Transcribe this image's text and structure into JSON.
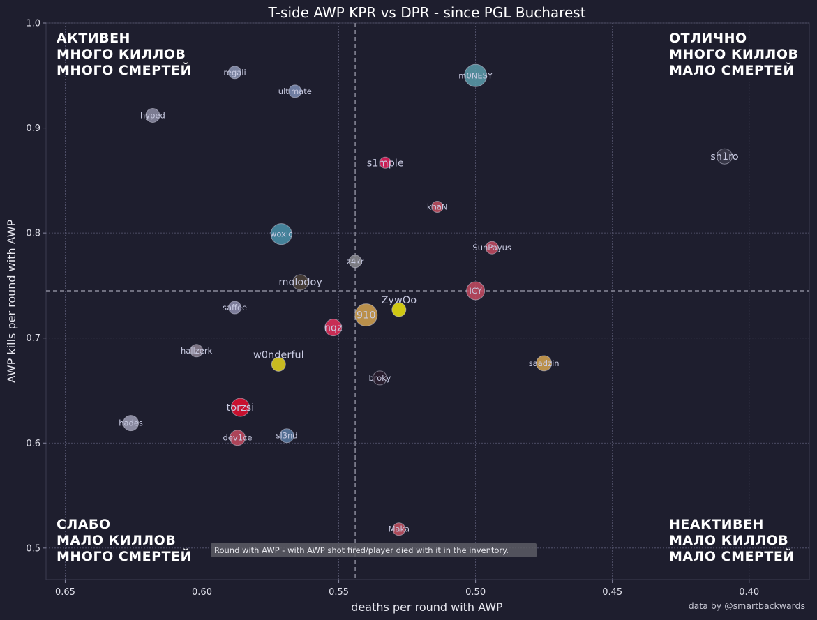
{
  "chart_data": {
    "type": "scatter",
    "title": "T-side AWP KPR vs DPR - since PGL Bucharest",
    "xlabel": "deaths per round with AWP",
    "ylabel": "AWP kills per round with AWP",
    "x_inverted": true,
    "xlim": [
      0.657,
      0.378
    ],
    "ylim": [
      0.47,
      1.0
    ],
    "x_ticks": [
      "0.65",
      "0.60",
      "0.55",
      "0.50",
      "0.45",
      "0.40"
    ],
    "x_tick_values": [
      0.65,
      0.6,
      0.55,
      0.5,
      0.45,
      0.4
    ],
    "y_ticks": [
      "0.5",
      "0.6",
      "0.7",
      "0.8",
      "0.9",
      "1.0"
    ],
    "y_tick_values": [
      0.5,
      0.6,
      0.7,
      0.8,
      0.9,
      1.0
    ],
    "grid": true,
    "reference_lines": {
      "x": 0.544,
      "y": 0.745
    },
    "quadrants": {
      "top_left": [
        "АКТИВЕН",
        "МНОГО КИЛЛОВ",
        "МНОГО СМЕРТЕЙ"
      ],
      "top_right": [
        "ОТЛИЧНО",
        "МНОГО КИЛЛОВ",
        "МАЛО СМЕРТЕЙ"
      ],
      "bottom_left": [
        "СЛАБО",
        "МАЛО КИЛЛОВ",
        "МНОГО СМЕРТЕЙ"
      ],
      "bottom_right": [
        "НЕАКТИВЕН",
        "МАЛО КИЛЛОВ",
        "МАЛО СМЕРТЕЙ"
      ]
    },
    "note": "Round with AWP - with AWP shot fired/player died with it in the inventory.",
    "credit": "data by @smartbackwards",
    "points": [
      {
        "name": "regali",
        "x": 0.588,
        "y": 0.953,
        "size": 9,
        "color": "#8a93b0",
        "label_size": "small"
      },
      {
        "name": "ultimate",
        "x": 0.566,
        "y": 0.935,
        "size": 9,
        "color": "#7a8ab0",
        "label_size": "small"
      },
      {
        "name": "hyped",
        "x": 0.618,
        "y": 0.912,
        "size": 10,
        "color": "#8a8aa0",
        "label_size": "small"
      },
      {
        "name": "m0NESY",
        "x": 0.5,
        "y": 0.95,
        "size": 16,
        "color": "#5a9aa8",
        "label_size": "small"
      },
      {
        "name": "sh1ro",
        "x": 0.409,
        "y": 0.873,
        "size": 11,
        "color": "#3a3a4a",
        "label_size": "large"
      },
      {
        "name": "s1mple",
        "x": 0.533,
        "y": 0.867,
        "size": 8,
        "color": "#e0205a",
        "label_size": "large"
      },
      {
        "name": "khaN",
        "x": 0.514,
        "y": 0.825,
        "size": 8,
        "color": "#c05060",
        "label_size": "small"
      },
      {
        "name": "woxic",
        "x": 0.571,
        "y": 0.799,
        "size": 15,
        "color": "#4a90a8",
        "label_size": "small"
      },
      {
        "name": "SunPayus",
        "x": 0.494,
        "y": 0.786,
        "size": 9,
        "color": "#c04a60",
        "label_size": "small"
      },
      {
        "name": "z4kr",
        "x": 0.544,
        "y": 0.773,
        "size": 9,
        "color": "#8a8a90",
        "label_size": "small"
      },
      {
        "name": "molodoy",
        "x": 0.564,
        "y": 0.753,
        "size": 11,
        "color": "#4a4038",
        "label_size": "large"
      },
      {
        "name": "ICY",
        "x": 0.5,
        "y": 0.745,
        "size": 13,
        "color": "#c04a60",
        "label_size": "small"
      },
      {
        "name": "saffee",
        "x": 0.588,
        "y": 0.729,
        "size": 9,
        "color": "#8a8aa8",
        "label_size": "small"
      },
      {
        "name": "910",
        "x": 0.54,
        "y": 0.722,
        "size": 16,
        "color": "#d0a050",
        "label_size": "large"
      },
      {
        "name": "ZywOo",
        "x": 0.528,
        "y": 0.727,
        "size": 10,
        "color": "#e8e010",
        "label_size": "large"
      },
      {
        "name": "nqz",
        "x": 0.552,
        "y": 0.71,
        "size": 12,
        "color": "#e0305a",
        "label_size": "large"
      },
      {
        "name": "hallzerk",
        "x": 0.602,
        "y": 0.688,
        "size": 9,
        "color": "#8a8090",
        "label_size": "small"
      },
      {
        "name": "w0nderful",
        "x": 0.572,
        "y": 0.675,
        "size": 10,
        "color": "#e0d020",
        "label_size": "large"
      },
      {
        "name": "saadzin",
        "x": 0.475,
        "y": 0.676,
        "size": 11,
        "color": "#d0a050",
        "label_size": "small"
      },
      {
        "name": "broky",
        "x": 0.535,
        "y": 0.662,
        "size": 10,
        "color": "#2a1e2e",
        "label_size": "small"
      },
      {
        "name": "torzsi",
        "x": 0.586,
        "y": 0.634,
        "size": 13,
        "color": "#e01030",
        "label_size": "large"
      },
      {
        "name": "hades",
        "x": 0.626,
        "y": 0.619,
        "size": 11,
        "color": "#9a9ab0",
        "label_size": "small"
      },
      {
        "name": "sl3nd",
        "x": 0.569,
        "y": 0.607,
        "size": 10,
        "color": "#5a7aa0",
        "label_size": "small"
      },
      {
        "name": "dev1ce",
        "x": 0.587,
        "y": 0.605,
        "size": 11,
        "color": "#c04a60",
        "label_size": "small"
      },
      {
        "name": "Maka",
        "x": 0.528,
        "y": 0.518,
        "size": 9,
        "color": "#c05060",
        "label_size": "small"
      }
    ]
  }
}
